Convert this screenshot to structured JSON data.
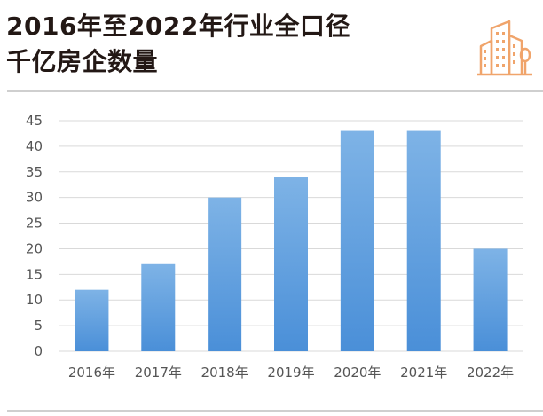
{
  "header": {
    "title_line1": "2016年至2022年行业全口径",
    "title_line2": "千亿房企数量"
  },
  "logo": {
    "icon": "city-buildings-icon",
    "color": "#f0a46b"
  },
  "colors": {
    "bar_top": "#7eb3e6",
    "bar_bottom": "#4a8fd8",
    "grid": "#d9d9d9",
    "axis_text": "#555555"
  },
  "chart_data": {
    "type": "bar",
    "categories": [
      "2016年",
      "2017年",
      "2018年",
      "2019年",
      "2020年",
      "2021年",
      "2022年"
    ],
    "values": [
      12,
      17,
      30,
      34,
      43,
      43,
      20
    ],
    "title": "2016年至2022年行业全口径千亿房企数量",
    "xlabel": "",
    "ylabel": "",
    "ylim": [
      0,
      45
    ],
    "yticks": [
      0,
      5,
      10,
      15,
      20,
      25,
      30,
      35,
      40,
      45
    ],
    "grid": true,
    "legend": "none"
  }
}
